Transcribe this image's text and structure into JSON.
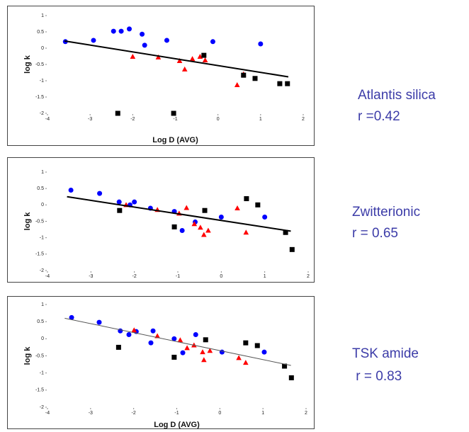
{
  "chart_data": [
    {
      "type": "scatter",
      "x_label": "Log D (AVG)",
      "y_label": "log k",
      "annotations": [
        "Atlantis silica",
        "r =0.42"
      ],
      "xlim": [
        -4,
        2
      ],
      "xticks": [
        -4,
        -3,
        -2,
        -1,
        0,
        1,
        2
      ],
      "ylim": [
        -2,
        1
      ],
      "yticks": [
        -2,
        -1.5,
        -1,
        -0.5,
        0,
        0.5,
        1
      ],
      "series": [
        {
          "color": "#0000ff",
          "marker": "circle",
          "x": [
            -3.58,
            -2.92,
            -2.45,
            -2.27,
            -2.08,
            -1.78,
            -1.72,
            -1.2,
            -0.12,
            1.0
          ],
          "values": [
            0.2,
            0.24,
            0.52,
            0.52,
            0.59,
            0.43,
            0.09,
            0.24,
            0.2,
            0.13
          ]
        },
        {
          "color": "#ff0000",
          "marker": "triangle",
          "x": [
            -2.0,
            -1.4,
            -0.9,
            -0.78,
            -0.6,
            -0.42,
            -0.3,
            0.45,
            0.6
          ],
          "values": [
            -0.26,
            -0.28,
            -0.39,
            -0.65,
            -0.33,
            -0.26,
            -0.37,
            -1.13,
            -0.8
          ]
        },
        {
          "color": "#000000",
          "marker": "square",
          "x": [
            -2.35,
            -1.04,
            -0.33,
            0.6,
            0.87,
            1.45,
            1.63
          ],
          "values": [
            -2,
            -2,
            -0.22,
            -0.83,
            -0.93,
            -1.09,
            -1.09
          ]
        }
      ],
      "trendline": {
        "color": "#000000",
        "x": [
          -3.6,
          1.65
        ],
        "values": [
          0.22,
          -0.88
        ]
      }
    },
    {
      "type": "scatter",
      "y_label": "log k",
      "annotations": [
        "Zwitterionic",
        "r = 0.65"
      ],
      "xlim": [
        -4,
        2
      ],
      "xticks": [
        -4,
        -3,
        -2,
        -1,
        0,
        1,
        2
      ],
      "ylim": [
        -2,
        1
      ],
      "yticks": [
        -2,
        -1.5,
        -1,
        -0.5,
        0,
        0.5,
        1
      ],
      "series": [
        {
          "color": "#0000ff",
          "marker": "circle",
          "x": [
            -3.46,
            -2.8,
            -2.35,
            -2.1,
            -2.0,
            -1.63,
            -1.08,
            -0.9,
            -0.6,
            0.0,
            1.0
          ],
          "values": [
            0.45,
            0.35,
            0.09,
            0.0,
            0.09,
            -0.1,
            -0.2,
            -0.78,
            -0.52,
            -0.37,
            -0.37
          ]
        },
        {
          "color": "#ff0000",
          "marker": "triangle",
          "x": [
            -2.19,
            -1.47,
            -0.97,
            -0.8,
            -0.62,
            -0.48,
            -0.4,
            -0.3,
            0.37,
            0.57
          ],
          "values": [
            0.0,
            -0.15,
            -0.26,
            -0.09,
            -0.58,
            -0.69,
            -0.91,
            -0.78,
            -0.1,
            -0.84
          ]
        },
        {
          "color": "#000000",
          "marker": "square",
          "x": [
            -2.34,
            -1.08,
            -0.38,
            0.58,
            0.84,
            1.48,
            1.63
          ],
          "values": [
            -0.17,
            -0.67,
            -0.17,
            0.19,
            0.0,
            -0.84,
            -1.36
          ]
        }
      ],
      "trendline": {
        "color": "#000000",
        "x": [
          -3.55,
          1.6
        ],
        "values": [
          0.25,
          -0.8
        ]
      }
    },
    {
      "type": "scatter",
      "x_label": "Log D (AVG)",
      "y_label": "log k",
      "annotations": [
        "TSK amide",
        " r = 0.83"
      ],
      "xlim": [
        -4,
        2
      ],
      "xticks": [
        -4,
        -3,
        -2,
        -1,
        0,
        1,
        2
      ],
      "ylim": [
        -2,
        1
      ],
      "yticks": [
        -2,
        -1.5,
        -1,
        -0.5,
        0,
        0.5,
        1
      ],
      "series": [
        {
          "color": "#0000ff",
          "marker": "circle",
          "x": [
            -3.44,
            -2.8,
            -2.31,
            -2.11,
            -1.94,
            -1.55,
            -1.6,
            -1.06,
            -0.86,
            -0.56,
            0.05,
            1.03
          ],
          "values": [
            0.62,
            0.48,
            0.23,
            0.12,
            0.21,
            0.23,
            -0.12,
            0.0,
            -0.41,
            0.12,
            -0.39,
            -0.39
          ]
        },
        {
          "color": "#ff0000",
          "marker": "triangle",
          "x": [
            -1.99,
            -1.45,
            -0.92,
            -0.76,
            -0.6,
            -0.4,
            -0.37,
            -0.23,
            0.44,
            0.6
          ],
          "values": [
            0.25,
            0.08,
            -0.04,
            -0.27,
            -0.19,
            -0.39,
            -0.62,
            -0.35,
            -0.56,
            -0.7
          ]
        },
        {
          "color": "#000000",
          "marker": "square",
          "x": [
            -2.35,
            -1.06,
            -0.33,
            0.6,
            0.87,
            1.5,
            1.66
          ],
          "values": [
            -0.25,
            -0.54,
            -0.03,
            -0.12,
            -0.2,
            -0.8,
            -1.14
          ]
        }
      ],
      "trendline": {
        "color": "#555555",
        "x": [
          -3.6,
          1.65
        ],
        "values": [
          0.6,
          -0.78
        ]
      }
    }
  ]
}
